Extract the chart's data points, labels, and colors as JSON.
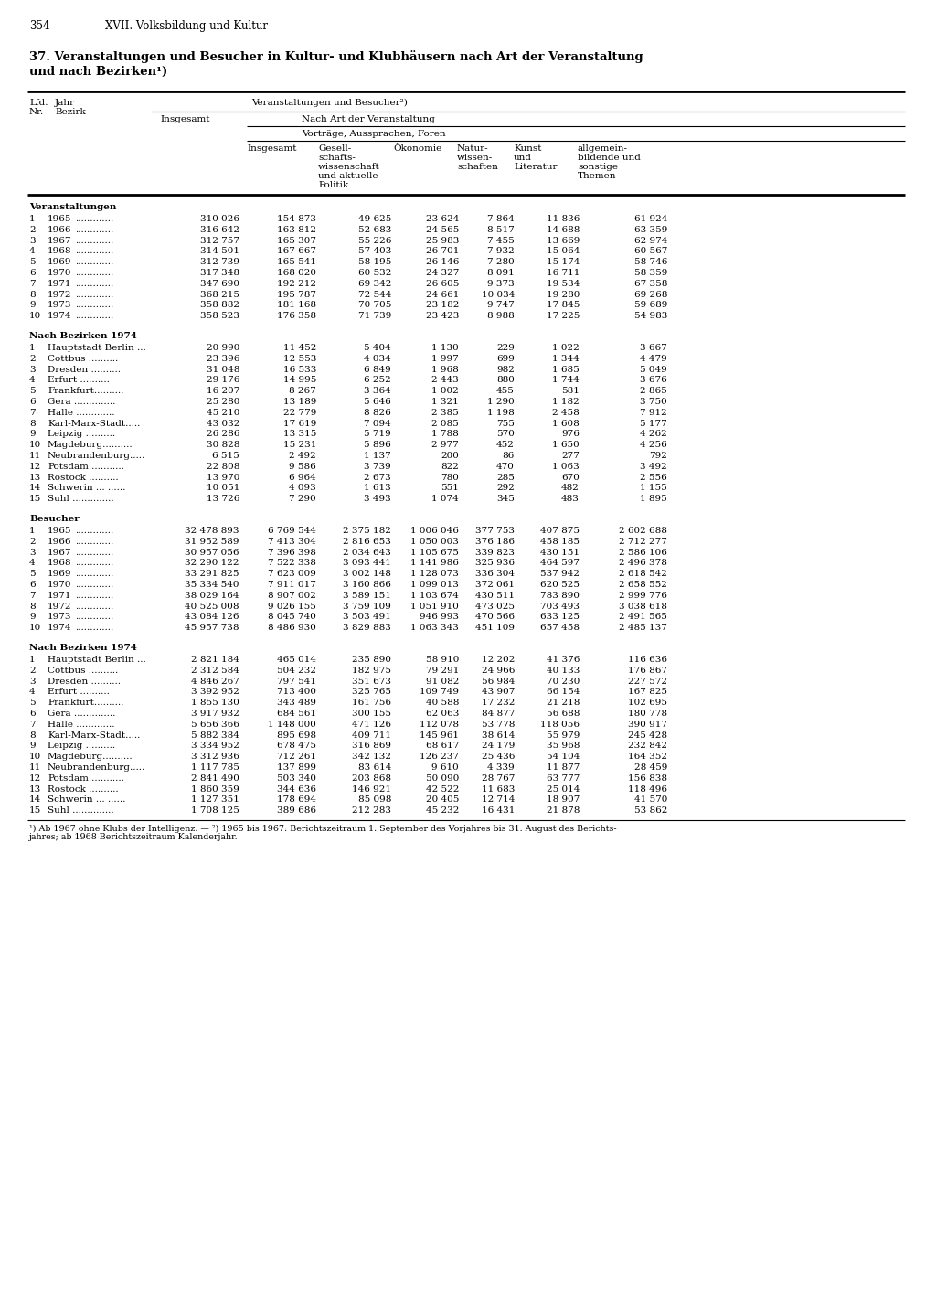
{
  "page_num": "354",
  "chapter": "XVII. Volksbildung und Kultur",
  "title_line1": "37. Veranstaltungen und Besucher in Kultur- und Klubhäusern nach Art der Veranstaltung",
  "title_line2": "und nach Bezirken¹)",
  "section1_title": "Veranstaltungen",
  "section1_years": [
    {
      "nr": "1",
      "jahr": "1965",
      "dots": ".............",
      "insgesamt": "310 026",
      "vort_ins": "154 873",
      "gesell": "49 625",
      "oeko": "23 624",
      "natur": "7 864",
      "kunst": "11 836",
      "allg": "61 924"
    },
    {
      "nr": "2",
      "jahr": "1966",
      "dots": ".............",
      "insgesamt": "316 642",
      "vort_ins": "163 812",
      "gesell": "52 683",
      "oeko": "24 565",
      "natur": "8 517",
      "kunst": "14 688",
      "allg": "63 359"
    },
    {
      "nr": "3",
      "jahr": "1967",
      "dots": ".............",
      "insgesamt": "312 757",
      "vort_ins": "165 307",
      "gesell": "55 226",
      "oeko": "25 983",
      "natur": "7 455",
      "kunst": "13 669",
      "allg": "62 974"
    },
    {
      "nr": "4",
      "jahr": "1968",
      "dots": ".............",
      "insgesamt": "314 501",
      "vort_ins": "167 667",
      "gesell": "57 403",
      "oeko": "26 701",
      "natur": "7 932",
      "kunst": "15 064",
      "allg": "60 567"
    },
    {
      "nr": "5",
      "jahr": "1969",
      "dots": ".............",
      "insgesamt": "312 739",
      "vort_ins": "165 541",
      "gesell": "58 195",
      "oeko": "26 146",
      "natur": "7 280",
      "kunst": "15 174",
      "allg": "58 746"
    },
    {
      "nr": "6",
      "jahr": "1970",
      "dots": ".............",
      "insgesamt": "317 348",
      "vort_ins": "168 020",
      "gesell": "60 532",
      "oeko": "24 327",
      "natur": "8 091",
      "kunst": "16 711",
      "allg": "58 359"
    },
    {
      "nr": "7",
      "jahr": "1971",
      "dots": ".............",
      "insgesamt": "347 690",
      "vort_ins": "192 212",
      "gesell": "69 342",
      "oeko": "26 605",
      "natur": "9 373",
      "kunst": "19 534",
      "allg": "67 358"
    },
    {
      "nr": "8",
      "jahr": "1972",
      "dots": ".............",
      "insgesamt": "368 215",
      "vort_ins": "195 787",
      "gesell": "72 544",
      "oeko": "24 661",
      "natur": "10 034",
      "kunst": "19 280",
      "allg": "69 268"
    },
    {
      "nr": "9",
      "jahr": "1973",
      "dots": ".............",
      "insgesamt": "358 882",
      "vort_ins": "181 168",
      "gesell": "70 705",
      "oeko": "23 182",
      "natur": "9 747",
      "kunst": "17 845",
      "allg": "59 689"
    },
    {
      "nr": "10",
      "jahr": "1974",
      "dots": ".............",
      "insgesamt": "358 523",
      "vort_ins": "176 358",
      "gesell": "71 739",
      "oeko": "23 423",
      "natur": "8 988",
      "kunst": "17 225",
      "allg": "54 983"
    }
  ],
  "section2_title": "Nach Bezirken 1974",
  "section2_bezirke": [
    {
      "nr": "1",
      "bezirk": "Hauptstadt Berlin ...",
      "insgesamt": "20 990",
      "vort_ins": "11 452",
      "gesell": "5 404",
      "oeko": "1 130",
      "natur": "229",
      "kunst": "1 022",
      "allg": "3 667"
    },
    {
      "nr": "2",
      "bezirk": "Cottbus ..........",
      "insgesamt": "23 396",
      "vort_ins": "12 553",
      "gesell": "4 034",
      "oeko": "1 997",
      "natur": "699",
      "kunst": "1 344",
      "allg": "4 479"
    },
    {
      "nr": "3",
      "bezirk": "Dresden ..........",
      "insgesamt": "31 048",
      "vort_ins": "16 533",
      "gesell": "6 849",
      "oeko": "1 968",
      "natur": "982",
      "kunst": "1 685",
      "allg": "5 049"
    },
    {
      "nr": "4",
      "bezirk": "Erfurt ..........",
      "insgesamt": "29 176",
      "vort_ins": "14 995",
      "gesell": "6 252",
      "oeko": "2 443",
      "natur": "880",
      "kunst": "1 744",
      "allg": "3 676"
    },
    {
      "nr": "5",
      "bezirk": "Frankfurt..........",
      "insgesamt": "16 207",
      "vort_ins": "8 267",
      "gesell": "3 364",
      "oeko": "1 002",
      "natur": "455",
      "kunst": "581",
      "allg": "2 865"
    },
    {
      "nr": "6",
      "bezirk": "Gera ..............",
      "insgesamt": "25 280",
      "vort_ins": "13 189",
      "gesell": "5 646",
      "oeko": "1 321",
      "natur": "1 290",
      "kunst": "1 182",
      "allg": "3 750"
    },
    {
      "nr": "7",
      "bezirk": "Halle .............",
      "insgesamt": "45 210",
      "vort_ins": "22 779",
      "gesell": "8 826",
      "oeko": "2 385",
      "natur": "1 198",
      "kunst": "2 458",
      "allg": "7 912"
    },
    {
      "nr": "8",
      "bezirk": "Karl-Marx-Stadt.....",
      "insgesamt": "43 032",
      "vort_ins": "17 619",
      "gesell": "7 094",
      "oeko": "2 085",
      "natur": "755",
      "kunst": "1 608",
      "allg": "5 177"
    },
    {
      "nr": "9",
      "bezirk": "Leipzig ..........",
      "insgesamt": "26 286",
      "vort_ins": "13 315",
      "gesell": "5 719",
      "oeko": "1 788",
      "natur": "570",
      "kunst": "976",
      "allg": "4 262"
    },
    {
      "nr": "10",
      "bezirk": "Magdeburg..........",
      "insgesamt": "30 828",
      "vort_ins": "15 231",
      "gesell": "5 896",
      "oeko": "2 977",
      "natur": "452",
      "kunst": "1 650",
      "allg": "4 256"
    },
    {
      "nr": "11",
      "bezirk": "Neubrandenburg.....",
      "insgesamt": "6 515",
      "vort_ins": "2 492",
      "gesell": "1 137",
      "oeko": "200",
      "natur": "86",
      "kunst": "277",
      "allg": "792"
    },
    {
      "nr": "12",
      "bezirk": "Potsdam............",
      "insgesamt": "22 808",
      "vort_ins": "9 586",
      "gesell": "3 739",
      "oeko": "822",
      "natur": "470",
      "kunst": "1 063",
      "allg": "3 492"
    },
    {
      "nr": "13",
      "bezirk": "Rostock ..........",
      "insgesamt": "13 970",
      "vort_ins": "6 964",
      "gesell": "2 673",
      "oeko": "780",
      "natur": "285",
      "kunst": "670",
      "allg": "2 556"
    },
    {
      "nr": "14",
      "bezirk": "Schwerin ... ......",
      "insgesamt": "10 051",
      "vort_ins": "4 093",
      "gesell": "1 613",
      "oeko": "551",
      "natur": "292",
      "kunst": "482",
      "allg": "1 155"
    },
    {
      "nr": "15",
      "bezirk": "Suhl ..............",
      "insgesamt": "13 726",
      "vort_ins": "7 290",
      "gesell": "3 493",
      "oeko": "1 074",
      "natur": "345",
      "kunst": "483",
      "allg": "1 895"
    }
  ],
  "section3_title": "Besucher",
  "section3_years": [
    {
      "nr": "1",
      "jahr": "1965",
      "dots": ".............",
      "insgesamt": "32 478 893",
      "vort_ins": "6 769 544",
      "gesell": "2 375 182",
      "oeko": "1 006 046",
      "natur": "377 753",
      "kunst": "407 875",
      "allg": "2 602 688"
    },
    {
      "nr": "2",
      "jahr": "1966",
      "dots": ".............",
      "insgesamt": "31 952 589",
      "vort_ins": "7 413 304",
      "gesell": "2 816 653",
      "oeko": "1 050 003",
      "natur": "376 186",
      "kunst": "458 185",
      "allg": "2 712 277"
    },
    {
      "nr": "3",
      "jahr": "1967",
      "dots": ".............",
      "insgesamt": "30 957 056",
      "vort_ins": "7 396 398",
      "gesell": "2 034 643",
      "oeko": "1 105 675",
      "natur": "339 823",
      "kunst": "430 151",
      "allg": "2 586 106"
    },
    {
      "nr": "4",
      "jahr": "1968",
      "dots": ".............",
      "insgesamt": "32 290 122",
      "vort_ins": "7 522 338",
      "gesell": "3 093 441",
      "oeko": "1 141 986",
      "natur": "325 936",
      "kunst": "464 597",
      "allg": "2 496 378"
    },
    {
      "nr": "5",
      "jahr": "1969",
      "dots": ".............",
      "insgesamt": "33 291 825",
      "vort_ins": "7 623 009",
      "gesell": "3 002 148",
      "oeko": "1 128 073",
      "natur": "336 304",
      "kunst": "537 942",
      "allg": "2 618 542"
    },
    {
      "nr": "6",
      "jahr": "1970",
      "dots": ".............",
      "insgesamt": "35 334 540",
      "vort_ins": "7 911 017",
      "gesell": "3 160 866",
      "oeko": "1 099 013",
      "natur": "372 061",
      "kunst": "620 525",
      "allg": "2 658 552"
    },
    {
      "nr": "7",
      "jahr": "1971",
      "dots": ".............",
      "insgesamt": "38 029 164",
      "vort_ins": "8 907 002",
      "gesell": "3 589 151",
      "oeko": "1 103 674",
      "natur": "430 511",
      "kunst": "783 890",
      "allg": "2 999 776"
    },
    {
      "nr": "8",
      "jahr": "1972",
      "dots": ".............",
      "insgesamt": "40 525 008",
      "vort_ins": "9 026 155",
      "gesell": "3 759 109",
      "oeko": "1 051 910",
      "natur": "473 025",
      "kunst": "703 493",
      "allg": "3 038 618"
    },
    {
      "nr": "9",
      "jahr": "1973",
      "dots": ".............",
      "insgesamt": "43 084 126",
      "vort_ins": "8 045 740",
      "gesell": "3 503 491",
      "oeko": "946 993",
      "natur": "470 566",
      "kunst": "633 125",
      "allg": "2 491 565"
    },
    {
      "nr": "10",
      "jahr": "1974",
      "dots": ".............",
      "insgesamt": "45 957 738",
      "vort_ins": "8 486 930",
      "gesell": "3 829 883",
      "oeko": "1 063 343",
      "natur": "451 109",
      "kunst": "657 458",
      "allg": "2 485 137"
    }
  ],
  "section4_title": "Nach Bezirken 1974",
  "section4_bezirke": [
    {
      "nr": "1",
      "bezirk": "Hauptstadt Berlin ...",
      "insgesamt": "2 821 184",
      "vort_ins": "465 014",
      "gesell": "235 890",
      "oeko": "58 910",
      "natur": "12 202",
      "kunst": "41 376",
      "allg": "116 636"
    },
    {
      "nr": "2",
      "bezirk": "Cottbus ..........",
      "insgesamt": "2 312 584",
      "vort_ins": "504 232",
      "gesell": "182 975",
      "oeko": "79 291",
      "natur": "24 966",
      "kunst": "40 133",
      "allg": "176 867"
    },
    {
      "nr": "3",
      "bezirk": "Dresden ..........",
      "insgesamt": "4 846 267",
      "vort_ins": "797 541",
      "gesell": "351 673",
      "oeko": "91 082",
      "natur": "56 984",
      "kunst": "70 230",
      "allg": "227 572"
    },
    {
      "nr": "4",
      "bezirk": "Erfurt ..........",
      "insgesamt": "3 392 952",
      "vort_ins": "713 400",
      "gesell": "325 765",
      "oeko": "109 749",
      "natur": "43 907",
      "kunst": "66 154",
      "allg": "167 825"
    },
    {
      "nr": "5",
      "bezirk": "Frankfurt..........",
      "insgesamt": "1 855 130",
      "vort_ins": "343 489",
      "gesell": "161 756",
      "oeko": "40 588",
      "natur": "17 232",
      "kunst": "21 218",
      "allg": "102 695"
    },
    {
      "nr": "6",
      "bezirk": "Gera ..............",
      "insgesamt": "3 917 932",
      "vort_ins": "684 561",
      "gesell": "300 155",
      "oeko": "62 063",
      "natur": "84 877",
      "kunst": "56 688",
      "allg": "180 778"
    },
    {
      "nr": "7",
      "bezirk": "Halle .............",
      "insgesamt": "5 656 366",
      "vort_ins": "1 148 000",
      "gesell": "471 126",
      "oeko": "112 078",
      "natur": "53 778",
      "kunst": "118 056",
      "allg": "390 917"
    },
    {
      "nr": "8",
      "bezirk": "Karl-Marx-Stadt.....",
      "insgesamt": "5 882 384",
      "vort_ins": "895 698",
      "gesell": "409 711",
      "oeko": "145 961",
      "natur": "38 614",
      "kunst": "55 979",
      "allg": "245 428"
    },
    {
      "nr": "9",
      "bezirk": "Leipzig ..........",
      "insgesamt": "3 334 952",
      "vort_ins": "678 475",
      "gesell": "316 869",
      "oeko": "68 617",
      "natur": "24 179",
      "kunst": "35 968",
      "allg": "232 842"
    },
    {
      "nr": "10",
      "bezirk": "Magdeburg..........",
      "insgesamt": "3 312 936",
      "vort_ins": "712 261",
      "gesell": "342 132",
      "oeko": "126 237",
      "natur": "25 436",
      "kunst": "54 104",
      "allg": "164 352"
    },
    {
      "nr": "11",
      "bezirk": "Neubrandenburg.....",
      "insgesamt": "1 117 785",
      "vort_ins": "137 899",
      "gesell": "83 614",
      "oeko": "9 610",
      "natur": "4 339",
      "kunst": "11 877",
      "allg": "28 459"
    },
    {
      "nr": "12",
      "bezirk": "Potsdam............",
      "insgesamt": "2 841 490",
      "vort_ins": "503 340",
      "gesell": "203 868",
      "oeko": "50 090",
      "natur": "28 767",
      "kunst": "63 777",
      "allg": "156 838"
    },
    {
      "nr": "13",
      "bezirk": "Rostock ..........",
      "insgesamt": "1 860 359",
      "vort_ins": "344 636",
      "gesell": "146 921",
      "oeko": "42 522",
      "natur": "11 683",
      "kunst": "25 014",
      "allg": "118 496"
    },
    {
      "nr": "14",
      "bezirk": "Schwerin ... ......",
      "insgesamt": "1 127 351",
      "vort_ins": "178 694",
      "gesell": "85 098",
      "oeko": "20 405",
      "natur": "12 714",
      "kunst": "18 907",
      "allg": "41 570"
    },
    {
      "nr": "15",
      "bezirk": "Suhl ..............",
      "insgesamt": "1 708 125",
      "vort_ins": "389 686",
      "gesell": "212 283",
      "oeko": "45 232",
      "natur": "16 431",
      "kunst": "21 878",
      "allg": "53 862"
    }
  ],
  "footnote1": "¹) Ab 1967 ohne Klubs der Intelligenz. — ²) 1965 bis 1967: Berichtszeitraum 1. September des Vorjahres bis 31. August des Berichts-",
  "footnote2": "jahres; ab 1968 Berichtszeitraum Kalenderjahr."
}
